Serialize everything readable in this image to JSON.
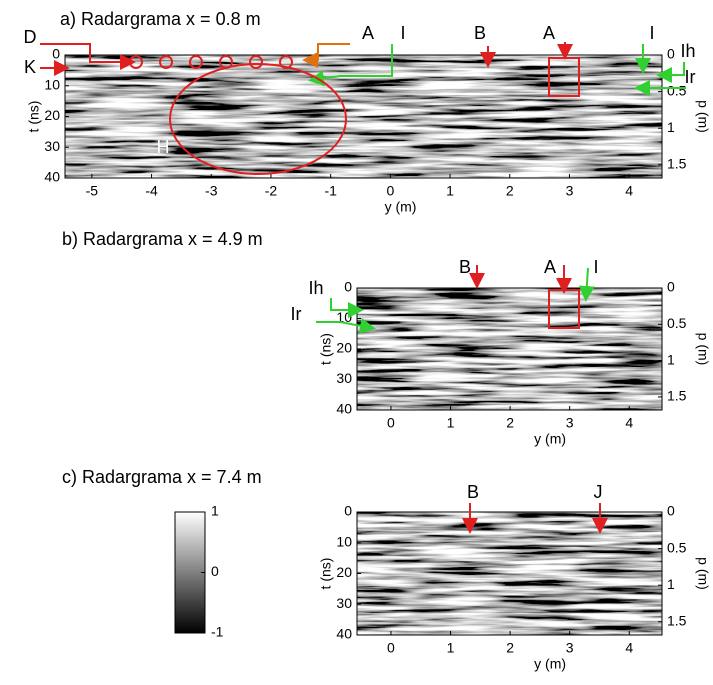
{
  "chart_data": [
    {
      "type": "radargram",
      "title": "a) Radargrama x = 0.8 m",
      "xlabel": "y (m)",
      "ylabel": "t (ns)",
      "y2label": "p (m)",
      "xlim": [
        -5.45,
        4.55
      ],
      "xticks": [
        -5,
        -4,
        -3,
        -2,
        -1,
        0,
        1,
        2,
        3,
        4
      ],
      "ylim": [
        0,
        40
      ],
      "yticks": [
        0,
        10,
        20,
        30,
        40
      ],
      "y2lim": [
        0,
        1.68
      ],
      "y2ticks": [
        0,
        0.5,
        1,
        1.5
      ],
      "annotations": [
        "D",
        "K",
        "H",
        "A",
        "I",
        "B",
        "A",
        "I",
        "Ih",
        "Ir"
      ]
    },
    {
      "type": "radargram",
      "title": "b) Radargrama x = 4.9 m",
      "xlabel": "y (m)",
      "ylabel": "t (ns)",
      "y2label": "p (m)",
      "xlim": [
        -0.57,
        4.55
      ],
      "xticks": [
        0,
        1,
        2,
        3,
        4
      ],
      "ylim": [
        0,
        40
      ],
      "yticks": [
        0,
        10,
        20,
        30,
        40
      ],
      "y2lim": [
        0,
        1.68
      ],
      "y2ticks": [
        0,
        0.5,
        1,
        1.5
      ],
      "annotations": [
        "B",
        "A",
        "I",
        "Ih",
        "Ir"
      ]
    },
    {
      "type": "radargram",
      "title": "c) Radargrama x = 7.4 m",
      "xlabel": "y (m)",
      "ylabel": "t (ns)",
      "y2label": "p (m)",
      "xlim": [
        -0.57,
        4.55
      ],
      "xticks": [
        0,
        1,
        2,
        3,
        4
      ],
      "ylim": [
        0,
        40
      ],
      "yticks": [
        0,
        10,
        20,
        30,
        40
      ],
      "y2lim": [
        0,
        1.68
      ],
      "y2ticks": [
        0,
        0.5,
        1,
        1.5
      ],
      "annotations": [
        "B",
        "J"
      ]
    },
    {
      "type": "colorbar",
      "ylim": [
        -1,
        1
      ],
      "yticks": [
        -1,
        0,
        1
      ]
    }
  ]
}
